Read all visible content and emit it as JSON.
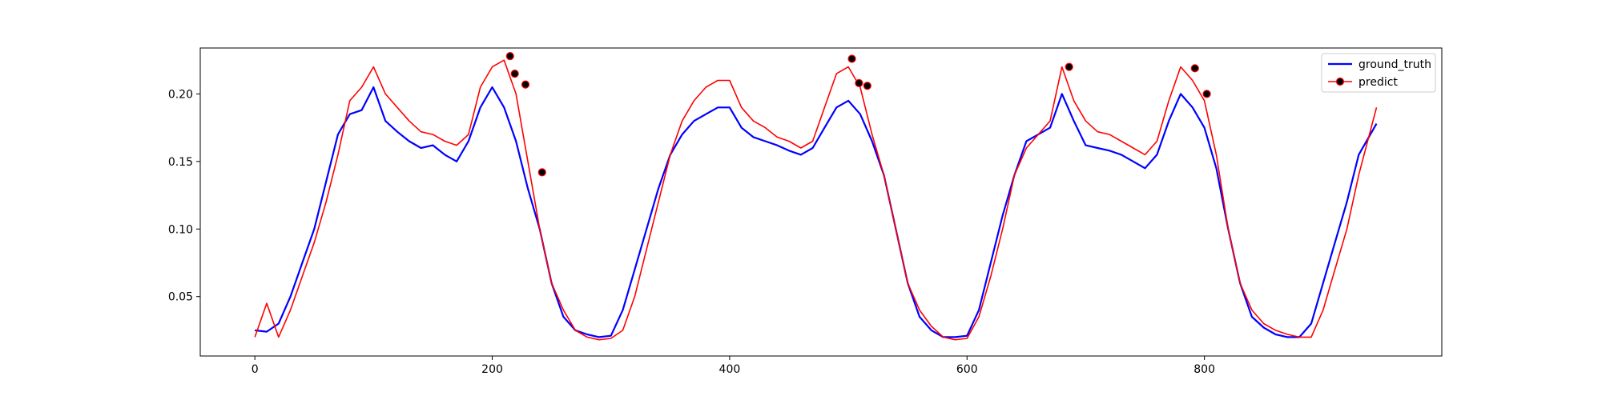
{
  "chart_data": {
    "type": "line",
    "title": "",
    "xlabel": "",
    "ylabel": "",
    "xlim": [
      -46,
      1000
    ],
    "ylim": [
      0.006,
      0.234
    ],
    "xticks": [
      0,
      200,
      400,
      600,
      800
    ],
    "xtick_labels": [
      "0",
      "200",
      "400",
      "600",
      "800"
    ],
    "yticks": [
      0.05,
      0.1,
      0.15,
      0.2
    ],
    "ytick_labels": [
      "0.05",
      "0.10",
      "0.15",
      "0.20"
    ],
    "legend_position": "top-right",
    "grid": false,
    "series": [
      {
        "name": "ground_truth",
        "color": "#0000ff",
        "x": [
          0,
          10,
          20,
          30,
          40,
          50,
          60,
          70,
          80,
          90,
          100,
          110,
          120,
          130,
          140,
          150,
          160,
          170,
          180,
          190,
          200,
          210,
          220,
          230,
          240,
          250,
          260,
          270,
          280,
          290,
          300,
          310,
          320,
          330,
          340,
          350,
          360,
          370,
          380,
          390,
          400,
          410,
          420,
          430,
          440,
          450,
          460,
          470,
          480,
          490,
          500,
          510,
          520,
          530,
          540,
          550,
          560,
          570,
          580,
          590,
          600,
          610,
          620,
          630,
          640,
          650,
          660,
          670,
          680,
          690,
          700,
          710,
          720,
          730,
          740,
          750,
          760,
          770,
          780,
          790,
          800,
          810,
          820,
          830,
          840,
          850,
          860,
          870,
          880,
          890,
          900,
          910,
          920,
          930,
          945
        ],
        "y": [
          0.025,
          0.024,
          0.03,
          0.05,
          0.075,
          0.1,
          0.135,
          0.17,
          0.185,
          0.188,
          0.205,
          0.18,
          0.172,
          0.165,
          0.16,
          0.162,
          0.155,
          0.15,
          0.165,
          0.19,
          0.205,
          0.19,
          0.165,
          0.13,
          0.1,
          0.06,
          0.035,
          0.025,
          0.022,
          0.02,
          0.021,
          0.04,
          0.07,
          0.1,
          0.13,
          0.155,
          0.17,
          0.18,
          0.185,
          0.19,
          0.19,
          0.175,
          0.168,
          0.165,
          0.162,
          0.158,
          0.155,
          0.16,
          0.175,
          0.19,
          0.195,
          0.185,
          0.165,
          0.14,
          0.1,
          0.06,
          0.035,
          0.025,
          0.02,
          0.02,
          0.021,
          0.04,
          0.075,
          0.11,
          0.14,
          0.165,
          0.17,
          0.175,
          0.2,
          0.18,
          0.162,
          0.16,
          0.158,
          0.155,
          0.15,
          0.145,
          0.155,
          0.18,
          0.2,
          0.19,
          0.175,
          0.145,
          0.1,
          0.06,
          0.035,
          0.027,
          0.022,
          0.02,
          0.02,
          0.03,
          0.06,
          0.09,
          0.12,
          0.155,
          0.178
        ]
      },
      {
        "name": "predict",
        "color": "#ff0000",
        "x": [
          0,
          10,
          20,
          30,
          40,
          50,
          60,
          70,
          80,
          90,
          100,
          110,
          120,
          130,
          140,
          150,
          160,
          170,
          180,
          190,
          200,
          210,
          220,
          230,
          240,
          250,
          260,
          270,
          280,
          290,
          300,
          310,
          320,
          330,
          340,
          350,
          360,
          370,
          380,
          390,
          400,
          410,
          420,
          430,
          440,
          450,
          460,
          470,
          480,
          490,
          500,
          510,
          520,
          530,
          540,
          550,
          560,
          570,
          580,
          590,
          600,
          610,
          620,
          630,
          640,
          650,
          660,
          670,
          680,
          690,
          700,
          710,
          720,
          730,
          740,
          750,
          760,
          770,
          780,
          790,
          800,
          810,
          820,
          830,
          840,
          850,
          860,
          870,
          880,
          890,
          900,
          910,
          920,
          930,
          945
        ],
        "y": [
          0.02,
          0.045,
          0.02,
          0.04,
          0.065,
          0.09,
          0.12,
          0.155,
          0.195,
          0.205,
          0.22,
          0.2,
          0.19,
          0.18,
          0.172,
          0.17,
          0.165,
          0.162,
          0.17,
          0.205,
          0.22,
          0.225,
          0.2,
          0.15,
          0.1,
          0.06,
          0.04,
          0.025,
          0.02,
          0.018,
          0.019,
          0.025,
          0.05,
          0.085,
          0.12,
          0.155,
          0.18,
          0.195,
          0.205,
          0.21,
          0.21,
          0.19,
          0.18,
          0.175,
          0.168,
          0.165,
          0.16,
          0.165,
          0.19,
          0.215,
          0.22,
          0.205,
          0.17,
          0.14,
          0.1,
          0.06,
          0.04,
          0.028,
          0.02,
          0.018,
          0.019,
          0.035,
          0.065,
          0.1,
          0.14,
          0.16,
          0.17,
          0.18,
          0.22,
          0.195,
          0.18,
          0.172,
          0.17,
          0.165,
          0.16,
          0.155,
          0.165,
          0.195,
          0.22,
          0.21,
          0.195,
          0.155,
          0.1,
          0.06,
          0.04,
          0.03,
          0.025,
          0.022,
          0.02,
          0.02,
          0.04,
          0.07,
          0.1,
          0.14,
          0.19
        ]
      }
    ],
    "markers": {
      "series": "predict",
      "face_color": "#000000",
      "edge_color": "#ff0000",
      "points": [
        {
          "x": 215,
          "y": 0.228
        },
        {
          "x": 219,
          "y": 0.215
        },
        {
          "x": 228,
          "y": 0.207
        },
        {
          "x": 242,
          "y": 0.142
        },
        {
          "x": 503,
          "y": 0.226
        },
        {
          "x": 509,
          "y": 0.208
        },
        {
          "x": 516,
          "y": 0.206
        },
        {
          "x": 686,
          "y": 0.22
        },
        {
          "x": 792,
          "y": 0.219
        },
        {
          "x": 802,
          "y": 0.2
        }
      ]
    }
  }
}
